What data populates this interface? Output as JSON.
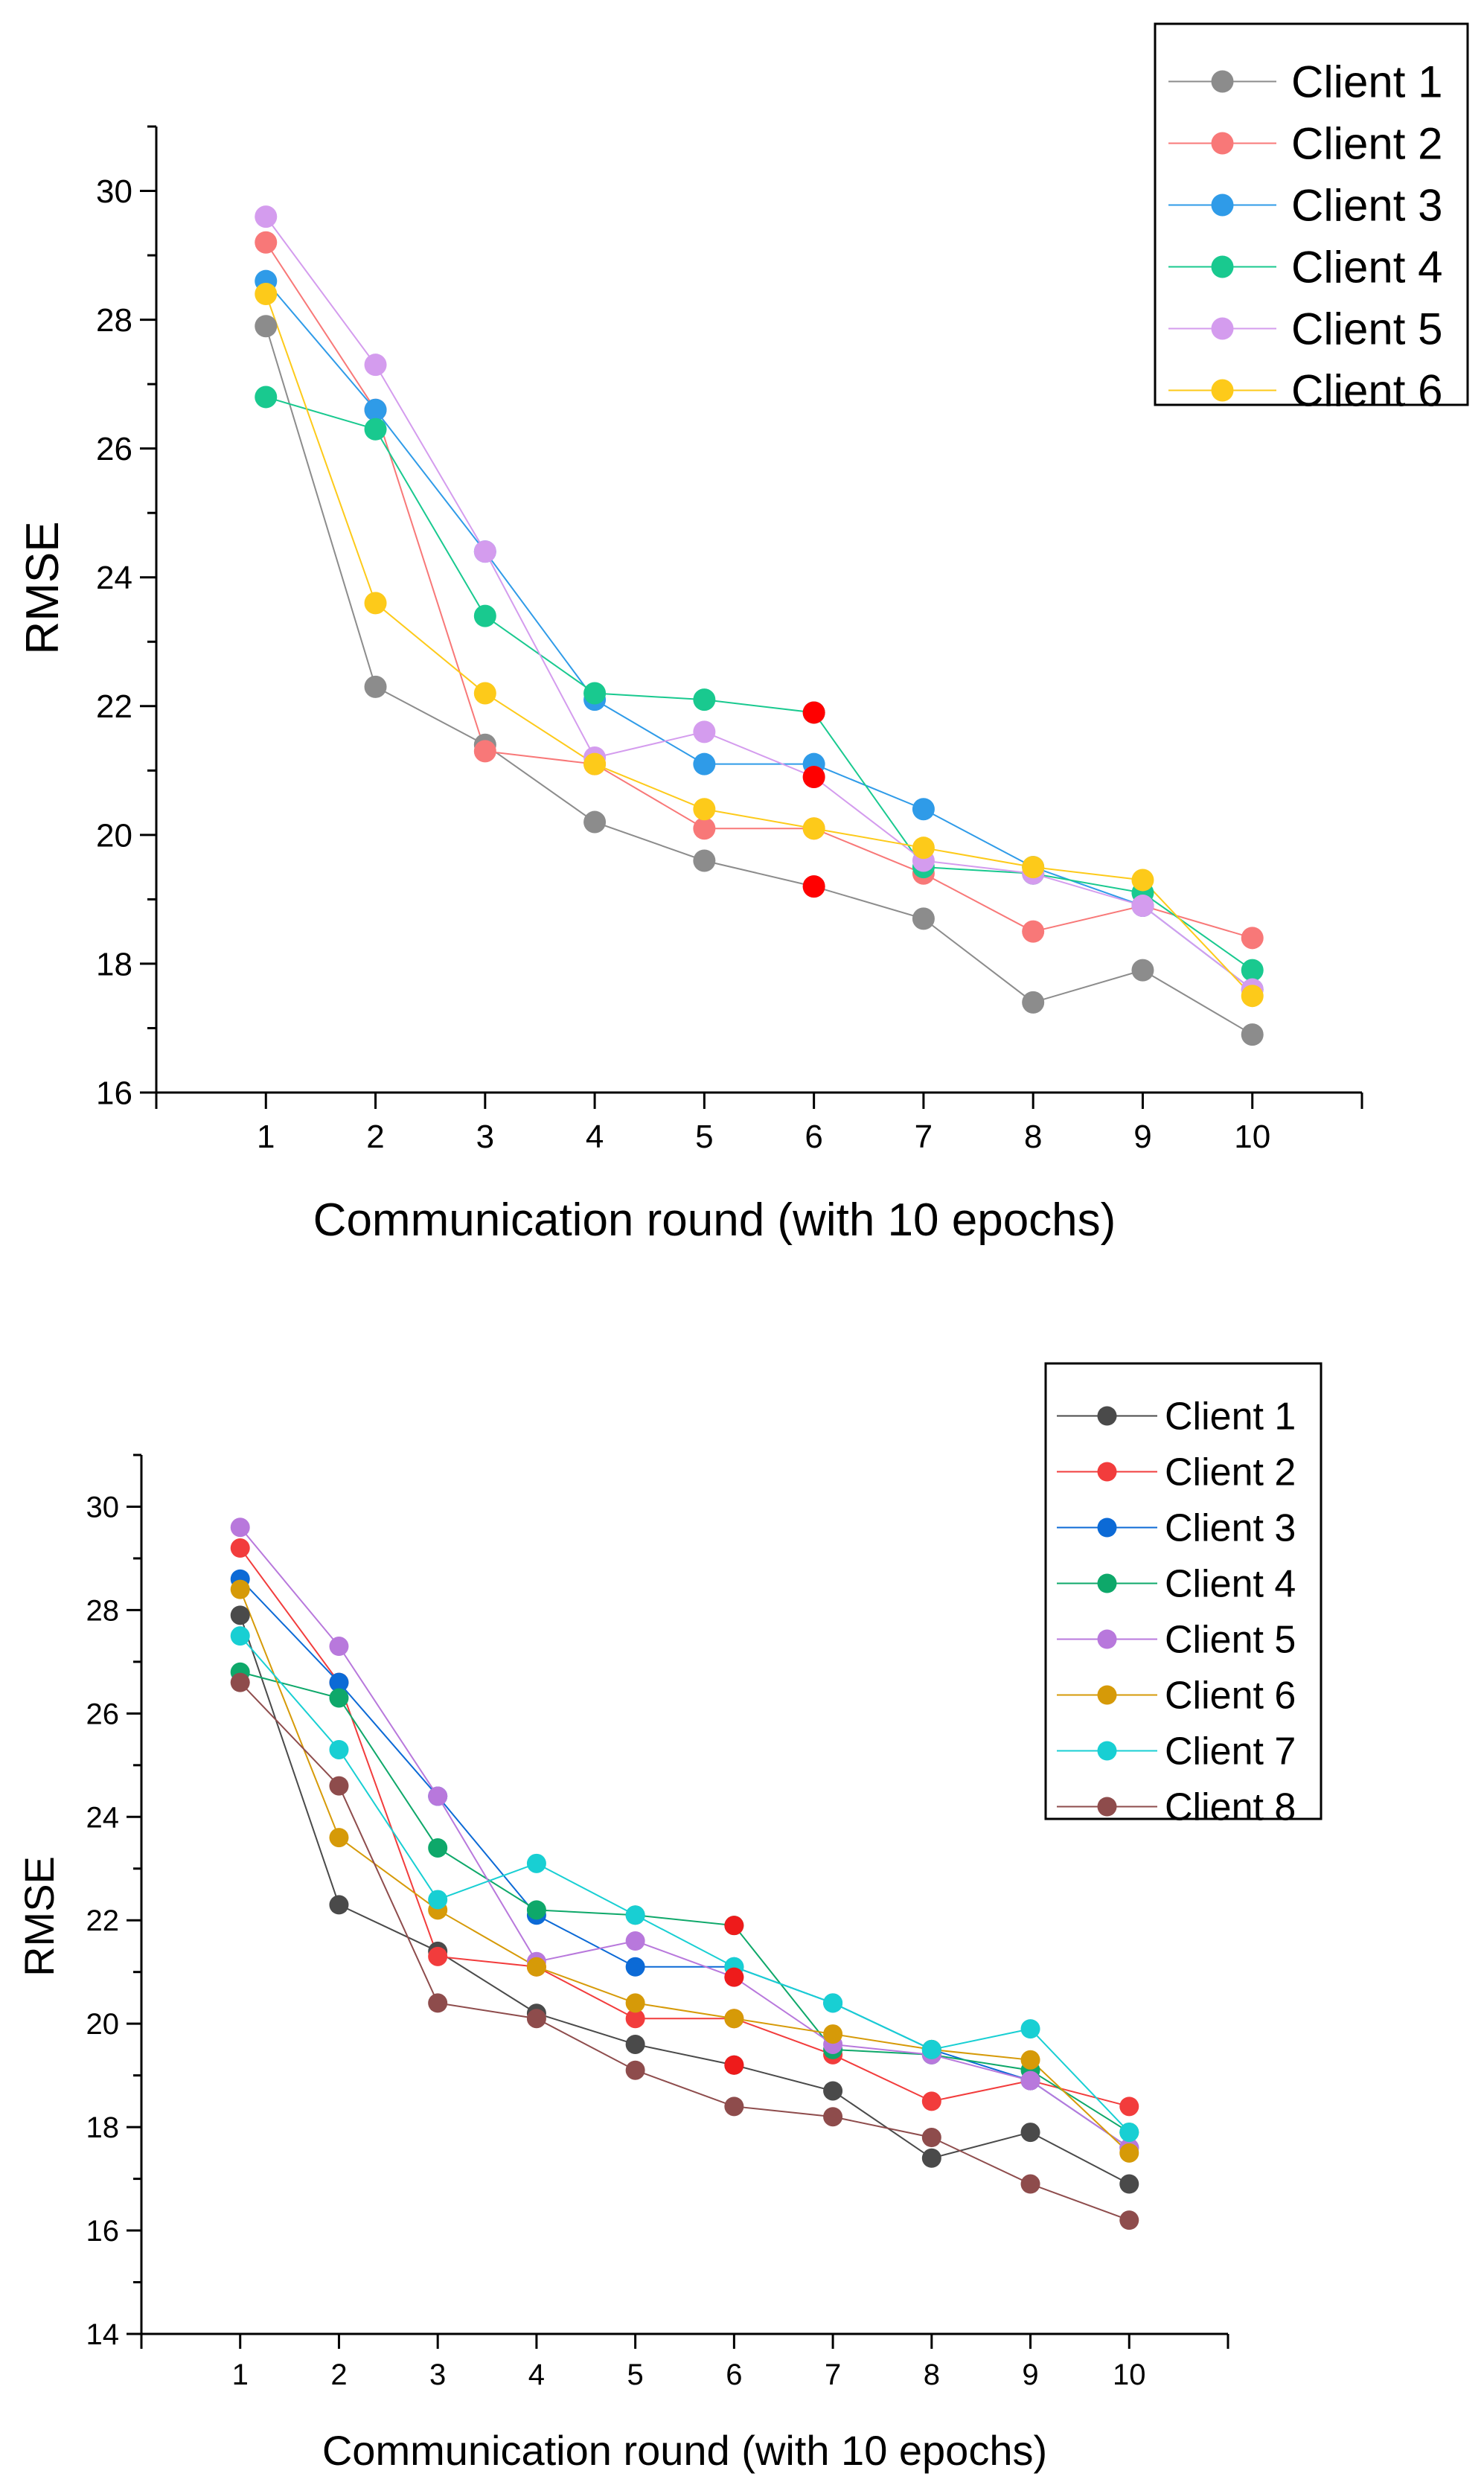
{
  "chart_data": [
    {
      "type": "line",
      "xlabel": "Communication round (with 10 epochs)",
      "ylabel": "RMSE",
      "x": [
        1,
        2,
        3,
        4,
        5,
        6,
        7,
        8,
        9,
        10
      ],
      "xlim": [
        0,
        11
      ],
      "ylim": [
        16,
        31
      ],
      "yticks": [
        16,
        18,
        20,
        22,
        24,
        26,
        28,
        30
      ],
      "legend_position": "top-right",
      "series": [
        {
          "name": "Client 1",
          "color": "#8c8c8c",
          "values": [
            27.9,
            22.3,
            21.4,
            20.2,
            19.6,
            19.2,
            18.7,
            17.4,
            17.9,
            16.9
          ]
        },
        {
          "name": "Client 2",
          "color": "#f87878",
          "values": [
            29.2,
            26.6,
            21.3,
            21.1,
            20.1,
            20.1,
            19.4,
            18.5,
            18.9,
            18.4
          ]
        },
        {
          "name": "Client 3",
          "color": "#2f9be8",
          "values": [
            28.6,
            26.6,
            24.4,
            22.1,
            21.1,
            21.1,
            20.4,
            19.5,
            18.9,
            17.6
          ]
        },
        {
          "name": "Client 4",
          "color": "#19c98f",
          "values": [
            26.8,
            26.3,
            23.4,
            22.2,
            22.1,
            21.9,
            19.5,
            19.4,
            19.1,
            17.9
          ]
        },
        {
          "name": "Client 5",
          "color": "#d49cee",
          "values": [
            29.6,
            27.3,
            24.4,
            21.2,
            21.6,
            20.9,
            19.6,
            19.4,
            18.9,
            17.6
          ]
        },
        {
          "name": "Client 6",
          "color": "#fdca1a",
          "values": [
            28.4,
            23.6,
            22.2,
            21.1,
            20.4,
            20.1,
            19.8,
            19.5,
            19.3,
            17.5
          ]
        }
      ],
      "highlight_points": [
        {
          "x": 6,
          "y": 21.9,
          "color": "#ff0000"
        },
        {
          "x": 6,
          "y": 20.9,
          "color": "#ff0000"
        },
        {
          "x": 6,
          "y": 19.2,
          "color": "#ff0000"
        }
      ]
    },
    {
      "type": "line",
      "xlabel": "Communication round (with 10 epochs)",
      "ylabel": "RMSE",
      "x": [
        1,
        2,
        3,
        4,
        5,
        6,
        7,
        8,
        9,
        10
      ],
      "xlim": [
        0,
        11
      ],
      "ylim": [
        14,
        31
      ],
      "yticks": [
        14,
        16,
        18,
        20,
        22,
        24,
        26,
        28,
        30
      ],
      "legend_position": "top-right",
      "series": [
        {
          "name": "Client 1",
          "color": "#4a4a4a",
          "values": [
            27.9,
            22.3,
            21.4,
            20.2,
            19.6,
            19.2,
            18.7,
            17.4,
            17.9,
            16.9
          ]
        },
        {
          "name": "Client 2",
          "color": "#f23c3c",
          "values": [
            29.2,
            26.6,
            21.3,
            21.1,
            20.1,
            20.1,
            19.4,
            18.5,
            18.9,
            18.4
          ]
        },
        {
          "name": "Client 3",
          "color": "#0c6ad6",
          "values": [
            28.6,
            26.6,
            24.4,
            22.1,
            21.1,
            21.1,
            20.4,
            19.5,
            18.9,
            17.6
          ]
        },
        {
          "name": "Client 4",
          "color": "#0ea86a",
          "values": [
            26.8,
            26.3,
            23.4,
            22.2,
            22.1,
            21.9,
            19.5,
            19.4,
            19.1,
            17.9
          ]
        },
        {
          "name": "Client 5",
          "color": "#b878dc",
          "values": [
            29.6,
            27.3,
            24.4,
            21.2,
            21.6,
            20.9,
            19.6,
            19.4,
            18.9,
            17.6
          ]
        },
        {
          "name": "Client 6",
          "color": "#d69a08",
          "values": [
            28.4,
            23.6,
            22.2,
            21.1,
            20.4,
            20.1,
            19.8,
            19.5,
            19.3,
            17.5
          ]
        },
        {
          "name": "Client 7",
          "color": "#18cfd3",
          "values": [
            27.5,
            25.3,
            22.4,
            23.1,
            22.1,
            21.1,
            20.4,
            19.5,
            19.9,
            17.9
          ]
        },
        {
          "name": "Client 8",
          "color": "#8e4c4c",
          "values": [
            26.6,
            24.6,
            20.4,
            20.1,
            19.1,
            18.4,
            18.2,
            17.8,
            16.9,
            16.2
          ]
        }
      ],
      "highlight_points": [
        {
          "x": 6,
          "y": 21.9,
          "color": "#ee1b1b"
        },
        {
          "x": 6,
          "y": 20.9,
          "color": "#ee1b1b"
        },
        {
          "x": 6,
          "y": 19.2,
          "color": "#ee1b1b"
        }
      ]
    }
  ]
}
